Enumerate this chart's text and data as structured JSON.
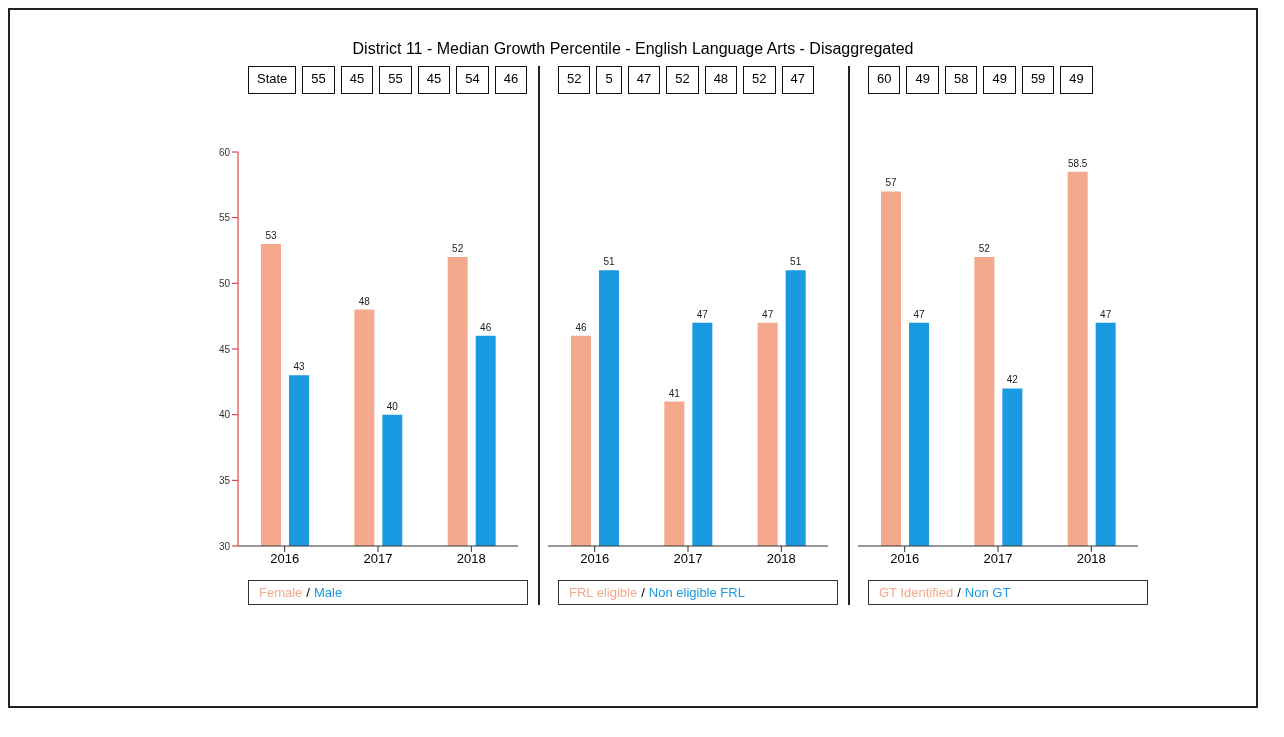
{
  "chart_data": [
    {
      "type": "bar",
      "title": "District 11  -  Median Growth Percentile  -  English Language Arts  -  Disaggregated",
      "categories": [
        "2016",
        "2017",
        "2018"
      ],
      "series": [
        {
          "name": "Female",
          "color": "#f4a98c",
          "values": [
            53,
            48,
            52
          ]
        },
        {
          "name": "Male",
          "color": "#1a9ae0",
          "values": [
            43,
            40,
            46
          ]
        }
      ],
      "ylim": [
        30,
        60
      ],
      "yticks": [
        30,
        35,
        40,
        45,
        50,
        55,
        60
      ],
      "data_labels": true,
      "legend": "bottom",
      "annotations": [
        "State",
        "55",
        "45",
        "55",
        "45",
        "54",
        "46",
        "/"
      ]
    },
    {
      "type": "bar",
      "categories": [
        "2016",
        "2017",
        "2018"
      ],
      "series": [
        {
          "name": "FRL eligible",
          "color": "#f4a98c",
          "values": [
            46,
            41,
            47
          ]
        },
        {
          "name": "Non eligible FRL",
          "color": "#1a9ae0",
          "values": [
            51,
            47,
            51
          ]
        }
      ],
      "ylim": [
        30,
        60
      ],
      "yticks": [
        30,
        35,
        40,
        45,
        50,
        55,
        60
      ],
      "tick_labels": "x",
      "data_labels": true,
      "legend": "bottom",
      "annotations": [
        "52",
        "5",
        "47",
        "52",
        "48",
        "52",
        "47",
        "/"
      ]
    },
    {
      "type": "bar",
      "categories": [
        "2016",
        "2017",
        "2018"
      ],
      "series": [
        {
          "name": "GT Identified",
          "color": "#f4a98c",
          "values": [
            57,
            52,
            58.5
          ]
        },
        {
          "name": "Non GT",
          "color": "#1a9ae0",
          "values": [
            47,
            42,
            47
          ]
        }
      ],
      "ylim": [
        30,
        60
      ],
      "yticks": [
        30,
        35,
        40,
        45,
        50,
        55,
        60
      ],
      "tick_labels": "x",
      "data_labels": true,
      "legend": "bottom",
      "annotations": [
        "60",
        "49",
        "58",
        "49",
        "59",
        "49",
        "/"
      ]
    }
  ]
}
